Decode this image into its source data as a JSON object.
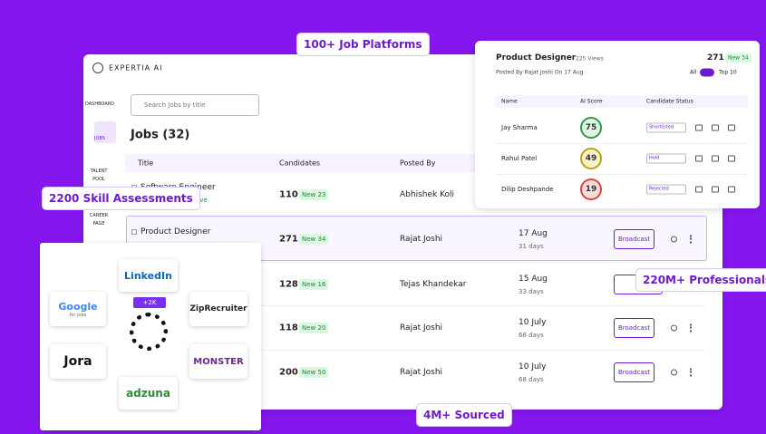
{
  "badges": [
    "100+ Job Platforms",
    "2200 Skill Assessments",
    "220M+ Professionals",
    "4M+ Sourced"
  ],
  "app": {
    "brand": "EXPERTIA AI",
    "nav": [
      "DASHBOARD",
      "JOBS",
      "TALENT POOL",
      "CAREER PAGE"
    ],
    "search_placeholder": "Search Jobs by title",
    "heading": "Jobs (32)",
    "columns": [
      "Title",
      "Candidates",
      "Posted By"
    ],
    "jobs": [
      {
        "title": "Software Engineer",
        "status": "Active",
        "candidates": 110,
        "new": "New 23",
        "posted_by": "Abhishek Koli"
      },
      {
        "title": "Product Designer",
        "candidates": 271,
        "new": "New 34",
        "posted_by": "Rajat Joshi",
        "date": "17 Aug",
        "age": "31 days",
        "action": "Broadcast"
      },
      {
        "candidates": 128,
        "new": "New 16",
        "posted_by": "Tejas Khandekar",
        "date": "15 Aug",
        "age": "33 days"
      },
      {
        "candidates": 118,
        "new": "New 20",
        "posted_by": "Rajat Joshi",
        "date": "10 July",
        "age": "68 days",
        "action": "Broadcast"
      },
      {
        "candidates": 200,
        "new": "New 50",
        "posted_by": "Rajat Joshi",
        "date": "10 July",
        "age": "68 days",
        "action": "Broadcast"
      }
    ]
  },
  "popup": {
    "title": "Product Designer",
    "views": "225 Views",
    "candidates": 271,
    "new": "New 34",
    "posted": "Posted By Rajat Joshi On 17 Aug",
    "filter_all": "All",
    "filter_top": "Top 10",
    "columns": [
      "Name",
      "AI Score",
      "Candidate Status"
    ],
    "rows": [
      {
        "name": "Jay Sharma",
        "score": 75,
        "status": "Shortlisted"
      },
      {
        "name": "Rahul Patel",
        "score": 49,
        "status": "Hold"
      },
      {
        "name": "Dilip Deshpande",
        "score": 19,
        "status": "Rejected"
      }
    ]
  },
  "platforms": {
    "count_badge": "+2K",
    "linkedin": "LinkedIn",
    "google": "Google",
    "google_sub": "for Jobs",
    "ziprecruiter": "ZipRecruiter",
    "jora": "Jora",
    "monster": "MONSTER",
    "adzuna": "adzuna"
  }
}
